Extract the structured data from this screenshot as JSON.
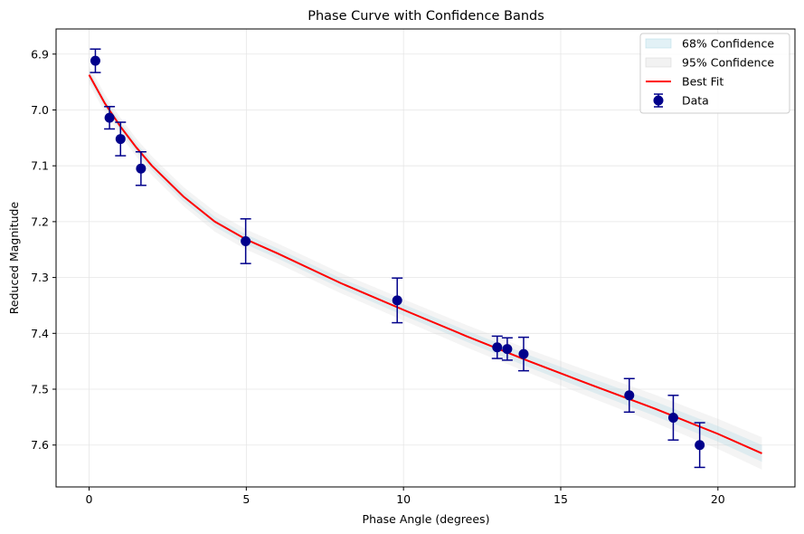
{
  "chart_data": {
    "type": "scatter",
    "title": "Phase Curve with Confidence Bands",
    "xlabel": "Phase Angle (degrees)",
    "ylabel": "Reduced Magnitude",
    "xlim": [
      -1.05,
      22.45
    ],
    "ylim": [
      7.675,
      6.855
    ],
    "y_inverted": true,
    "grid": true,
    "legend_position": "top-right",
    "x_ticks": [
      0,
      5,
      10,
      15,
      20
    ],
    "y_ticks": [
      6.9,
      7.0,
      7.1,
      7.2,
      7.3,
      7.4,
      7.5,
      7.6
    ],
    "x_tick_labels": [
      "0",
      "5",
      "10",
      "15",
      "20"
    ],
    "y_tick_labels": [
      "6.9",
      "7.0",
      "7.1",
      "7.2",
      "7.3",
      "7.4",
      "7.5",
      "7.6"
    ],
    "legend": [
      {
        "label": "68% Confidence",
        "kind": "band",
        "color": "#add8e6"
      },
      {
        "label": "95% Confidence",
        "kind": "band",
        "color": "#d3d3d3"
      },
      {
        "label": "Best Fit",
        "kind": "line",
        "color": "#ff0000"
      },
      {
        "label": "Data",
        "kind": "errorbar",
        "color": "#00008b"
      }
    ],
    "data_points": [
      {
        "x": 0.2,
        "y": 6.912,
        "err": 0.021
      },
      {
        "x": 0.65,
        "y": 7.014,
        "err": 0.02
      },
      {
        "x": 1.0,
        "y": 7.052,
        "err": 0.03
      },
      {
        "x": 1.65,
        "y": 7.105,
        "err": 0.03
      },
      {
        "x": 4.98,
        "y": 7.235,
        "err": 0.04
      },
      {
        "x": 9.8,
        "y": 7.341,
        "err": 0.04
      },
      {
        "x": 12.98,
        "y": 7.425,
        "err": 0.02
      },
      {
        "x": 13.3,
        "y": 7.428,
        "err": 0.02
      },
      {
        "x": 13.82,
        "y": 7.437,
        "err": 0.03
      },
      {
        "x": 17.18,
        "y": 7.511,
        "err": 0.03
      },
      {
        "x": 18.58,
        "y": 7.551,
        "err": 0.04
      },
      {
        "x": 19.42,
        "y": 7.6,
        "err": 0.04
      }
    ],
    "best_fit": {
      "x": [
        0,
        0.5,
        1,
        1.5,
        2,
        3,
        4,
        5,
        6,
        8,
        10,
        12,
        14,
        16,
        18,
        20,
        21.4
      ],
      "y": [
        6.937,
        6.988,
        7.03,
        7.067,
        7.1,
        7.155,
        7.2,
        7.232,
        7.257,
        7.31,
        7.358,
        7.405,
        7.45,
        7.493,
        7.535,
        7.58,
        7.615
      ]
    },
    "band68_halfwidth": [
      0.008,
      0.008,
      0.008,
      0.008,
      0.008,
      0.009,
      0.009,
      0.009,
      0.009,
      0.009,
      0.01,
      0.01,
      0.011,
      0.012,
      0.013,
      0.014,
      0.015
    ],
    "band95_halfwidth": [
      0.016,
      0.016,
      0.016,
      0.016,
      0.017,
      0.017,
      0.018,
      0.018,
      0.018,
      0.018,
      0.019,
      0.02,
      0.021,
      0.023,
      0.025,
      0.027,
      0.029
    ]
  }
}
